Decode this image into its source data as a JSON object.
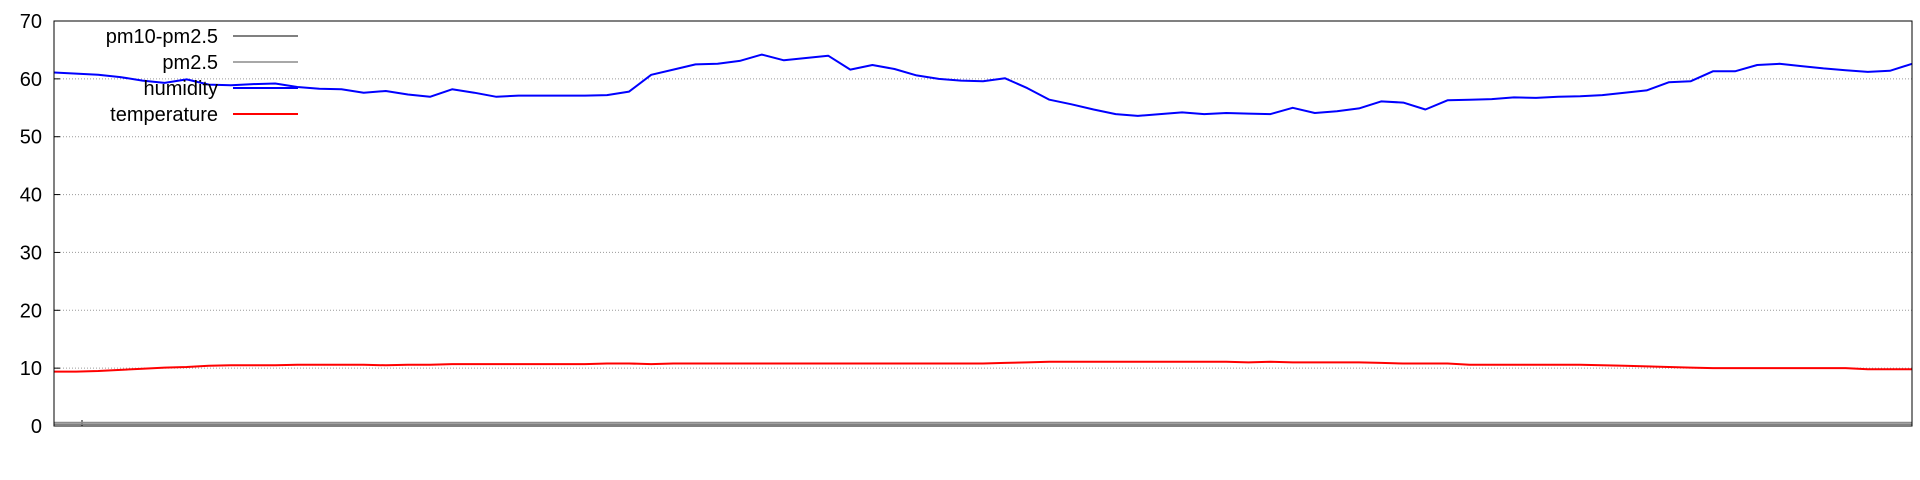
{
  "chart_data": {
    "type": "line",
    "title": "",
    "xlabel": "",
    "ylabel": "",
    "ylim": [
      0,
      70
    ],
    "yticks": [
      0,
      10,
      20,
      30,
      40,
      50,
      60,
      70
    ],
    "grid": "horizontal-dotted",
    "legend_position": "top-left",
    "series": [
      {
        "name": "pm10-pm2.5",
        "color": "#808080",
        "values": [
          0.3,
          0.3,
          0.3,
          0.3,
          0.3,
          0.3,
          0.3,
          0.3,
          0.3,
          0.3,
          0.3,
          0.3,
          0.3,
          0.3,
          0.3,
          0.3,
          0.3,
          0.3,
          0.3,
          0.3,
          0.3,
          0.3,
          0.3,
          0.3,
          0.3,
          0.3,
          0.3,
          0.3,
          0.3,
          0.3,
          0.3,
          0.3,
          0.3,
          0.3,
          0.3,
          0.3,
          0.3,
          0.3,
          0.3,
          0.3,
          0.3,
          0.3,
          0.3,
          0.3,
          0.3,
          0.3,
          0.3,
          0.3,
          0.3,
          0.3,
          0.3,
          0.3,
          0.3,
          0.3,
          0.3,
          0.3,
          0.3,
          0.3,
          0.3,
          0.3,
          0.3,
          0.3,
          0.3,
          0.3,
          0.3,
          0.3,
          0.3,
          0.3,
          0.3,
          0.3,
          0.3,
          0.3,
          0.3,
          0.3,
          0.3,
          0.3,
          0.3,
          0.3,
          0.3,
          0.3,
          0.3,
          0.3,
          0.3,
          0.3,
          0.3
        ]
      },
      {
        "name": "pm2.5",
        "color": "#8c8c8c",
        "values": [
          0.6,
          0.6,
          0.6,
          0.6,
          0.6,
          0.6,
          0.6,
          0.6,
          0.6,
          0.6,
          0.6,
          0.6,
          0.6,
          0.6,
          0.6,
          0.6,
          0.6,
          0.6,
          0.6,
          0.6,
          0.6,
          0.6,
          0.6,
          0.6,
          0.6,
          0.6,
          0.6,
          0.6,
          0.6,
          0.6,
          0.6,
          0.6,
          0.6,
          0.6,
          0.6,
          0.6,
          0.6,
          0.6,
          0.6,
          0.6,
          0.6,
          0.6,
          0.6,
          0.6,
          0.6,
          0.6,
          0.6,
          0.6,
          0.6,
          0.6,
          0.6,
          0.6,
          0.6,
          0.6,
          0.6,
          0.6,
          0.6,
          0.6,
          0.6,
          0.6,
          0.6,
          0.6,
          0.6,
          0.6,
          0.6,
          0.6,
          0.6,
          0.6,
          0.6,
          0.6,
          0.6,
          0.6,
          0.6,
          0.6,
          0.6,
          0.6,
          0.6,
          0.6,
          0.6,
          0.6,
          0.6,
          0.6,
          0.6,
          0.6,
          0.6
        ]
      },
      {
        "name": "humidity",
        "color": "#0000ff",
        "values": [
          61.1,
          60.9,
          60.7,
          60.3,
          59.7,
          59.3,
          59.9,
          59.0,
          58.9,
          59.1,
          59.2,
          58.6,
          58.3,
          58.2,
          57.6,
          57.9,
          57.3,
          56.9,
          58.2,
          57.6,
          56.9,
          57.1,
          57.1,
          57.1,
          57.1,
          57.2,
          57.8,
          60.7,
          61.6,
          62.5,
          62.6,
          63.1,
          64.2,
          63.2,
          63.6,
          64.0,
          61.6,
          62.4,
          61.7,
          60.6,
          60.0,
          59.7,
          59.6,
          60.1,
          58.4,
          56.4,
          55.6,
          54.7,
          53.9,
          53.6,
          53.9,
          54.2,
          53.9,
          54.1,
          54.0,
          53.9,
          55.0,
          54.1,
          54.4,
          54.9,
          56.1,
          55.9,
          54.7,
          56.3,
          56.4,
          56.5,
          56.8,
          56.7,
          56.9,
          57.0,
          57.2,
          57.6,
          58.0,
          59.4,
          59.6,
          61.3,
          61.3,
          62.4,
          62.6,
          62.2,
          61.8,
          61.5,
          61.2,
          61.4,
          62.6
        ]
      },
      {
        "name": "temperature",
        "color": "#ff0000",
        "values": [
          9.4,
          9.4,
          9.5,
          9.7,
          9.9,
          10.1,
          10.2,
          10.4,
          10.5,
          10.5,
          10.5,
          10.6,
          10.6,
          10.6,
          10.6,
          10.5,
          10.6,
          10.6,
          10.7,
          10.7,
          10.7,
          10.7,
          10.7,
          10.7,
          10.7,
          10.8,
          10.8,
          10.7,
          10.8,
          10.8,
          10.8,
          10.8,
          10.8,
          10.8,
          10.8,
          10.8,
          10.8,
          10.8,
          10.8,
          10.8,
          10.8,
          10.8,
          10.8,
          10.9,
          11.0,
          11.1,
          11.1,
          11.1,
          11.1,
          11.1,
          11.1,
          11.1,
          11.1,
          11.1,
          11.0,
          11.1,
          11.0,
          11.0,
          11.0,
          11.0,
          10.9,
          10.8,
          10.8,
          10.8,
          10.6,
          10.6,
          10.6,
          10.6,
          10.6,
          10.6,
          10.5,
          10.4,
          10.3,
          10.2,
          10.1,
          10.0,
          10.0,
          10.0,
          10.0,
          10.0,
          10.0,
          10.0,
          9.8,
          9.8,
          9.8
        ]
      }
    ]
  }
}
